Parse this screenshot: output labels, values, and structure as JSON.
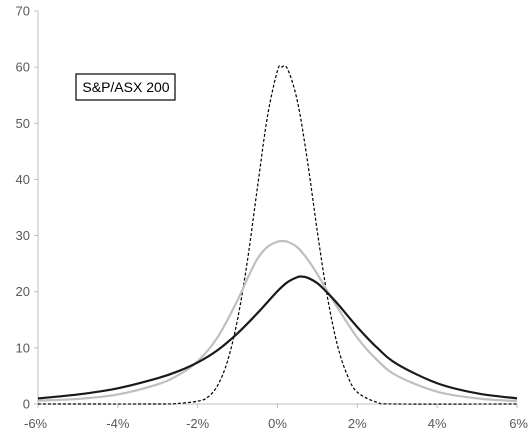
{
  "chart_data": {
    "type": "line",
    "title": "",
    "xlabel": "",
    "ylabel": "",
    "xlim": [
      -6,
      6
    ],
    "ylim": [
      0,
      70
    ],
    "x_ticks": [
      -6,
      -4,
      -2,
      0,
      2,
      4,
      6
    ],
    "x_tick_labels": [
      "-6%",
      "-4%",
      "-2%",
      "0%",
      "2%",
      "4%",
      "6%"
    ],
    "y_ticks": [
      0,
      10,
      20,
      30,
      40,
      50,
      60,
      70
    ],
    "y_tick_labels": [
      "0",
      "10",
      "20",
      "30",
      "40",
      "50",
      "60",
      "70"
    ],
    "grid": false,
    "legend": "none",
    "annotation": "S&P/ASX 200",
    "series": [
      {
        "style": "dashed",
        "color": "#000000",
        "x": [
          -6,
          -3,
          -2.5,
          -2,
          -1.75,
          -1.5,
          -1.25,
          -1,
          -0.75,
          -0.5,
          -0.25,
          0,
          0.1,
          0.25,
          0.5,
          0.75,
          1,
          1.25,
          1.5,
          1.75,
          2,
          2.5,
          3,
          6
        ],
        "y": [
          0,
          0,
          0.1,
          0.5,
          1.2,
          3.3,
          7.7,
          15.1,
          25.7,
          38.7,
          51.3,
          59.4,
          60,
          59.7,
          53.9,
          43.3,
          30.6,
          19.1,
          10.5,
          5.1,
          2.1,
          0.3,
          0,
          0
        ]
      },
      {
        "style": "solid",
        "color": "#bfbfbf",
        "x": [
          -6,
          -5,
          -4,
          -3,
          -2.5,
          -2,
          -1.5,
          -1,
          -0.75,
          -0.5,
          -0.25,
          0,
          0.1,
          0.25,
          0.5,
          0.75,
          1,
          1.5,
          2,
          2.5,
          3,
          4,
          5,
          6
        ],
        "y": [
          0.6,
          0.9,
          1.7,
          3.5,
          5.1,
          7.6,
          11.9,
          18.5,
          22.4,
          25.9,
          28.0,
          28.9,
          29.0,
          28.9,
          27.9,
          25.8,
          23.1,
          17.2,
          11.8,
          7.8,
          5.0,
          2.2,
          1.0,
          0.5
        ]
      },
      {
        "style": "solid",
        "color": "#1a1a1a",
        "x": [
          -6,
          -5,
          -4,
          -3,
          -2.5,
          -2,
          -1.5,
          -1,
          -0.5,
          0,
          0.25,
          0.5,
          0.6,
          0.75,
          1,
          1.25,
          1.5,
          2,
          2.5,
          3,
          4,
          5,
          6
        ],
        "y": [
          1.0,
          1.7,
          2.8,
          4.6,
          5.8,
          7.4,
          9.6,
          12.6,
          16.2,
          20.1,
          21.7,
          22.6,
          22.7,
          22.5,
          21.5,
          19.8,
          17.9,
          13.7,
          10.0,
          7.1,
          3.7,
          1.9,
          1.0
        ]
      }
    ]
  }
}
